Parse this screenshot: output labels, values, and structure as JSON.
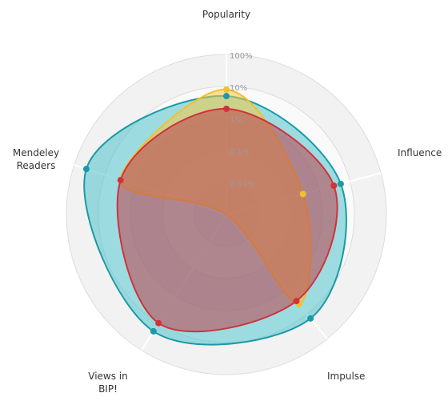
{
  "chart_data": {
    "type": "radar",
    "title": "",
    "axes": [
      {
        "label": "Popularity"
      },
      {
        "label": "Influence"
      },
      {
        "label": "Impulse"
      },
      {
        "label_lines": [
          "Views in",
          "BIP!"
        ]
      },
      {
        "label_lines": [
          "Mendeley",
          "Readers"
        ]
      }
    ],
    "scale": "log",
    "range_percent": [
      0.001,
      100
    ],
    "ticks": [
      "0.01%",
      "0.1%",
      "1%",
      "10%",
      "100%"
    ],
    "legend": "none",
    "series": [
      {
        "color": "#1a9aa8",
        "fill": "#4fc3cc",
        "values_percent": [
          5,
          5,
          15,
          20,
          40
        ]
      },
      {
        "color": "#f0c030",
        "fill": "#f5c842",
        "values_percent": [
          8,
          0.3,
          4,
          0.001,
          3
        ]
      },
      {
        "color": "#d0323c",
        "fill": "#c0404a",
        "values_percent": [
          2,
          3,
          3,
          10,
          3
        ]
      }
    ]
  }
}
